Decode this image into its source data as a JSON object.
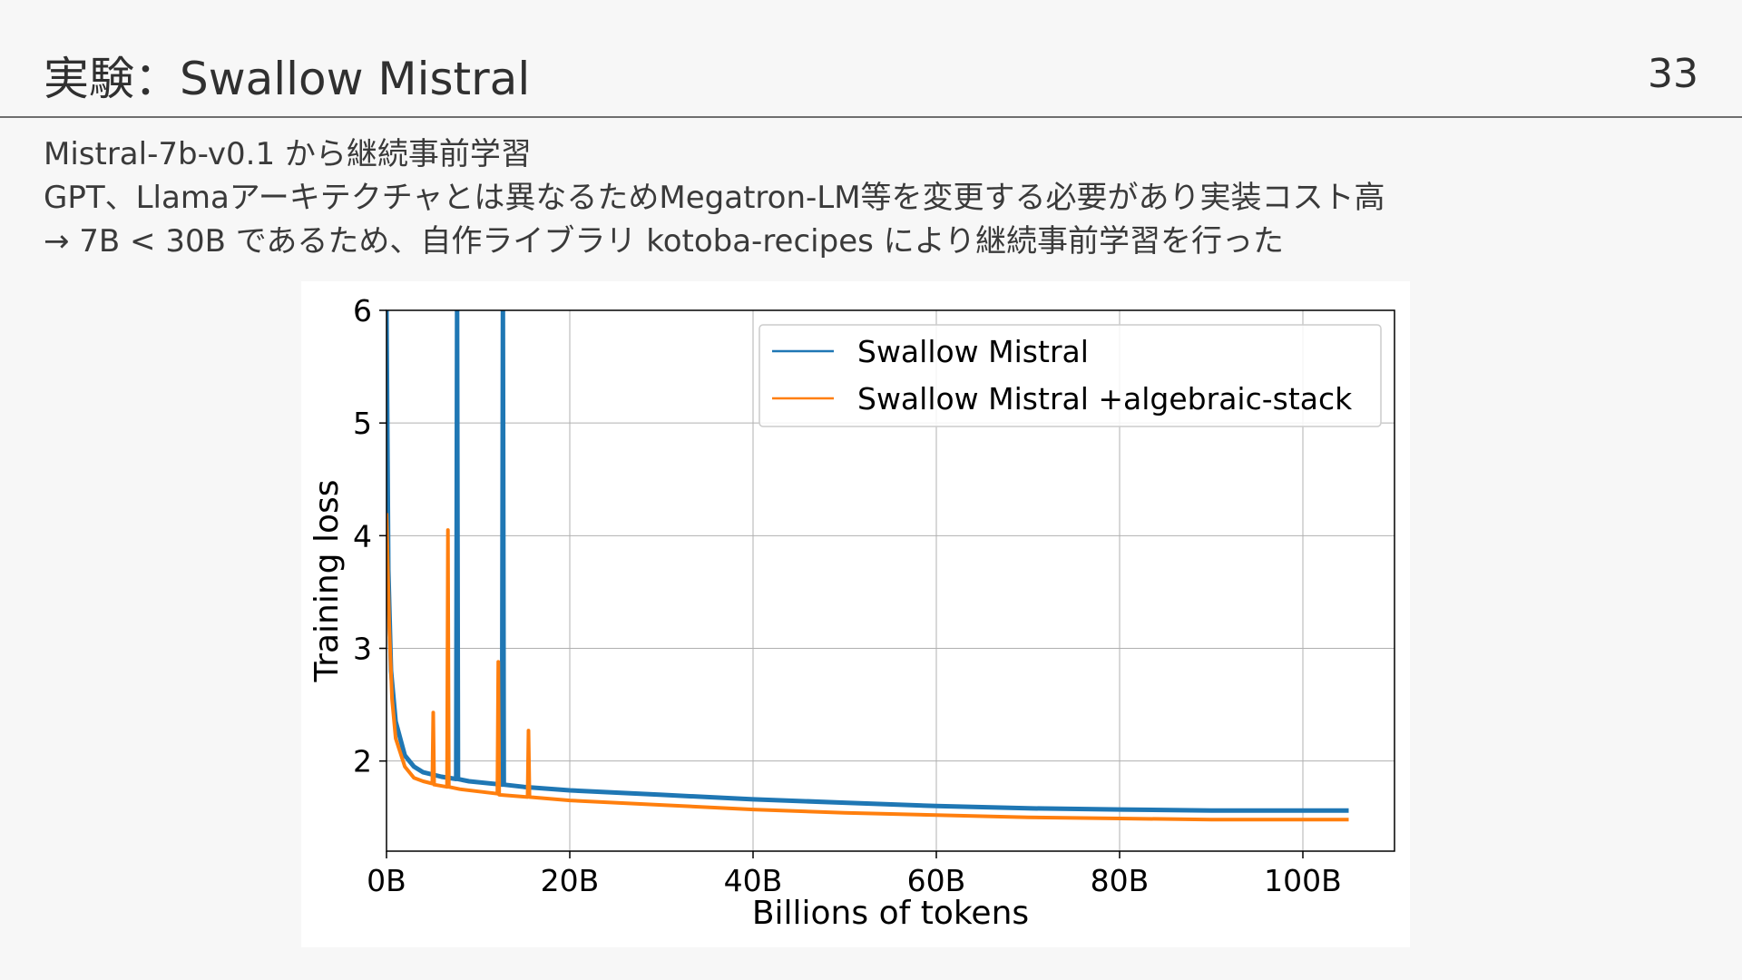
{
  "slide": {
    "title": "実験：Swallow Mistral",
    "page_number": "33",
    "bullets": [
      "Mistral-7b-v0.1 から継続事前学習",
      "GPT、Llamaアーキテクチャとは異なるためMegatron-LM等を変更する必要があり実装コスト高",
      "→ 7B < 30B であるため、自作ライブラリ kotoba-recipes により継続事前学習を行った"
    ]
  },
  "colors": {
    "series1": "#1f77b4",
    "series2": "#ff7f0e"
  },
  "chart_data": {
    "type": "line",
    "xlabel": "Billions of tokens",
    "ylabel": "Training loss",
    "xlim": [
      0,
      110
    ],
    "ylim": [
      1.2,
      6
    ],
    "xticks": [
      0,
      20,
      40,
      60,
      80,
      100
    ],
    "xtick_labels": [
      "0B",
      "20B",
      "40B",
      "60B",
      "80B",
      "100B"
    ],
    "yticks": [
      2,
      3,
      4,
      5,
      6
    ],
    "ytick_labels": [
      "2",
      "3",
      "4",
      "5",
      "6"
    ],
    "grid": true,
    "legend_position": "top-right",
    "series": [
      {
        "name": "Swallow Mistral",
        "color": "#1f77b4",
        "points": [
          [
            0,
            6
          ],
          [
            0.2,
            3.7
          ],
          [
            0.5,
            2.8
          ],
          [
            1,
            2.35
          ],
          [
            2,
            2.05
          ],
          [
            3,
            1.95
          ],
          [
            4,
            1.9
          ],
          [
            6,
            1.86
          ],
          [
            7.6,
            1.84
          ],
          [
            7.7,
            6.05
          ],
          [
            7.8,
            1.84
          ],
          [
            9,
            1.82
          ],
          [
            12.6,
            1.79
          ],
          [
            12.7,
            6.05
          ],
          [
            12.8,
            1.79
          ],
          [
            15,
            1.77
          ],
          [
            20,
            1.74
          ],
          [
            30,
            1.7
          ],
          [
            40,
            1.66
          ],
          [
            50,
            1.63
          ],
          [
            60,
            1.6
          ],
          [
            70,
            1.58
          ],
          [
            80,
            1.57
          ],
          [
            90,
            1.56
          ],
          [
            100,
            1.56
          ],
          [
            105,
            1.56
          ]
        ]
      },
      {
        "name": "Swallow Mistral +algebraic-stack",
        "color": "#ff7f0e",
        "points": [
          [
            0,
            4.2
          ],
          [
            0.3,
            3.2
          ],
          [
            0.6,
            2.55
          ],
          [
            1,
            2.2
          ],
          [
            2,
            1.95
          ],
          [
            3,
            1.85
          ],
          [
            4,
            1.82
          ],
          [
            5,
            1.8
          ],
          [
            5.1,
            2.43
          ],
          [
            5.2,
            1.79
          ],
          [
            6.6,
            1.77
          ],
          [
            6.7,
            4.05
          ],
          [
            6.8,
            1.77
          ],
          [
            8,
            1.75
          ],
          [
            12.1,
            1.71
          ],
          [
            12.2,
            2.88
          ],
          [
            12.3,
            1.7
          ],
          [
            15.4,
            1.68
          ],
          [
            15.5,
            2.27
          ],
          [
            15.6,
            1.68
          ],
          [
            20,
            1.65
          ],
          [
            30,
            1.61
          ],
          [
            40,
            1.57
          ],
          [
            50,
            1.54
          ],
          [
            60,
            1.52
          ],
          [
            70,
            1.5
          ],
          [
            80,
            1.49
          ],
          [
            90,
            1.48
          ],
          [
            100,
            1.48
          ],
          [
            105,
            1.48
          ]
        ]
      }
    ]
  }
}
